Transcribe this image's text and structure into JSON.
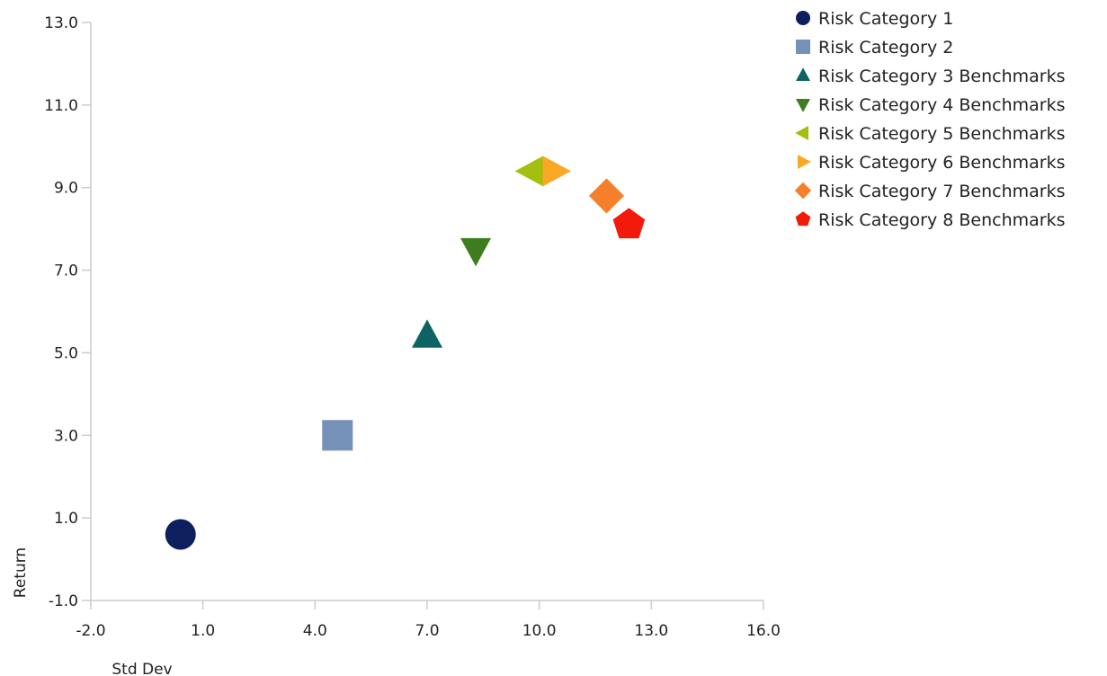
{
  "chart_data": {
    "type": "scatter",
    "title": "",
    "xlabel": "Std Dev",
    "ylabel": "Return",
    "xlim": [
      -2.0,
      16.0
    ],
    "ylim": [
      -1.0,
      13.0
    ],
    "xticks": [
      "-2.0",
      "1.0",
      "4.0",
      "7.0",
      "10.0",
      "13.0",
      "16.0"
    ],
    "yticks": [
      "-1.0",
      "1.0",
      "3.0",
      "5.0",
      "7.0",
      "9.0",
      "11.0",
      "13.0"
    ],
    "grid": false,
    "legend_position": "right",
    "series": [
      {
        "name": "Risk Category 1",
        "marker": "circle",
        "color": "#0d1f5c",
        "x": 0.4,
        "y": 0.6
      },
      {
        "name": "Risk Category 2",
        "marker": "square",
        "color": "#7591b8",
        "x": 4.6,
        "y": 3.0
      },
      {
        "name": "Risk Category 3 Benchmarks",
        "marker": "triangle-up",
        "color": "#0d6363",
        "x": 7.0,
        "y": 5.4
      },
      {
        "name": "Risk Category 4 Benchmarks",
        "marker": "triangle-down",
        "color": "#3d7d1e",
        "x": 8.3,
        "y": 7.5
      },
      {
        "name": "Risk Category 5 Benchmarks",
        "marker": "triangle-left",
        "color": "#a5bf0f",
        "x": 9.8,
        "y": 9.4
      },
      {
        "name": "Risk Category 6 Benchmarks",
        "marker": "triangle-right",
        "color": "#f9a825",
        "x": 10.4,
        "y": 9.4
      },
      {
        "name": "Risk Category 7 Benchmarks",
        "marker": "diamond",
        "color": "#f57f2a",
        "x": 11.8,
        "y": 8.8
      },
      {
        "name": "Risk Category 8 Benchmarks",
        "marker": "pentagon",
        "color": "#f21a0a",
        "x": 12.4,
        "y": 8.1
      }
    ]
  }
}
